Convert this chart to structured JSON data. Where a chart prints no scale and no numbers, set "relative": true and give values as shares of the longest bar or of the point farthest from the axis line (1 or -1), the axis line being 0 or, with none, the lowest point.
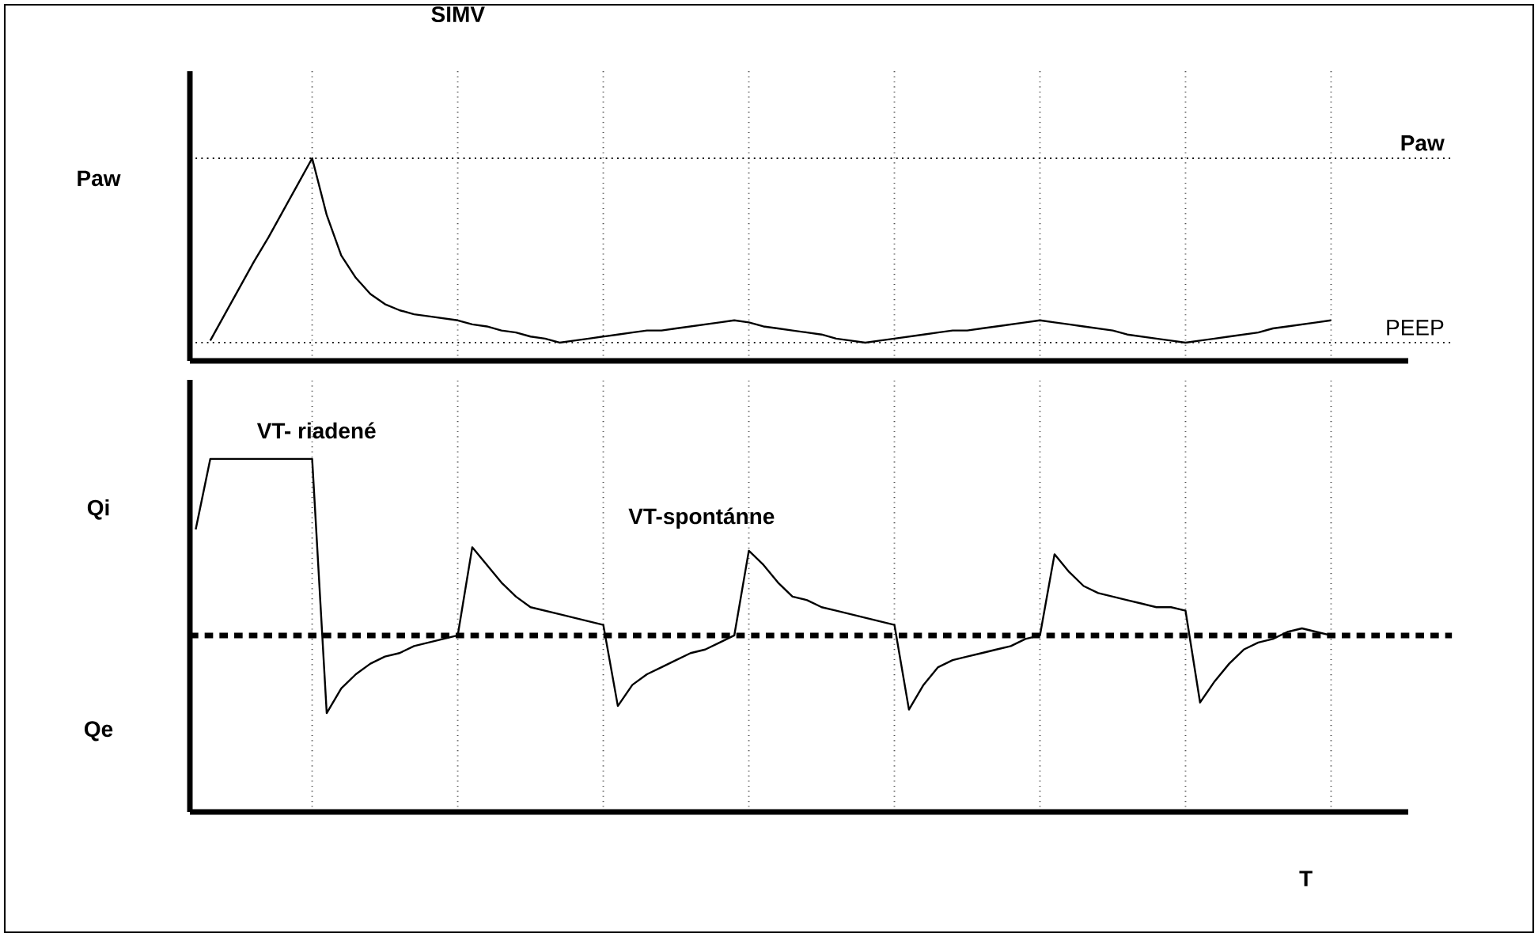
{
  "chart_data": [
    {
      "type": "line",
      "title": "SIMV",
      "ylabel": "Paw",
      "relative": true,
      "color": "#000000",
      "line_style": "solid",
      "marker": "none",
      "grid": "x",
      "categories": [
        null,
        null,
        null,
        null,
        null,
        null,
        null,
        null,
        null,
        null,
        null,
        null,
        null,
        null,
        null,
        null,
        null,
        null,
        null,
        null,
        null,
        null,
        null,
        null,
        null,
        null,
        null,
        null,
        null,
        null,
        null,
        null,
        null,
        null,
        null,
        null,
        null,
        null,
        null,
        null,
        null,
        null,
        null,
        null,
        null,
        null,
        null,
        null,
        null,
        null,
        null,
        null,
        null,
        null,
        null,
        null,
        null,
        null,
        null,
        null,
        null,
        null,
        null,
        null,
        null,
        null,
        null,
        null,
        null,
        null,
        null,
        null,
        null,
        null,
        null,
        null,
        null,
        null,
        null,
        null
      ],
      "values": [
        null,
        0.1,
        0.23,
        0.36,
        0.49,
        0.61,
        0.74,
        0.87,
        1,
        0.72,
        0.52,
        0.41,
        0.33,
        0.28,
        0.25,
        0.23,
        0.22,
        0.21,
        0.2,
        0.18,
        0.17,
        0.15,
        0.14,
        0.12,
        0.11,
        0.09,
        0.1,
        0.11,
        0.12,
        0.13,
        0.14,
        0.15,
        0.15,
        0.16,
        0.17,
        0.18,
        0.19,
        0.2,
        0.19,
        0.17,
        0.16,
        0.15,
        0.14,
        0.13,
        0.11,
        0.1,
        0.09,
        0.1,
        0.11,
        0.12,
        0.13,
        0.14,
        0.15,
        0.15,
        0.16,
        0.17,
        0.18,
        0.19,
        0.2,
        0.19,
        0.18,
        0.17,
        0.16,
        0.15,
        0.13,
        0.12,
        0.11,
        0.1,
        0.09,
        0.1,
        0.11,
        0.12,
        0.13,
        0.14,
        0.16,
        0.17,
        0.18,
        0.19,
        0.2,
        null
      ],
      "ref_lines": [
        {
          "axis": "y",
          "value": 1,
          "label": "Paw",
          "line_style": "dotted",
          "color": "#000000"
        },
        {
          "axis": "y",
          "value": 0.09,
          "label": "PEEP",
          "line_style": "dotted",
          "color": "#000000"
        }
      ]
    },
    {
      "type": "line",
      "xlabel": "T",
      "relative": true,
      "color": "#000000",
      "line_style": "solid",
      "marker": "none",
      "grid": "x",
      "categories": [
        null,
        null,
        null,
        null,
        null,
        null,
        null,
        null,
        null,
        null,
        null,
        null,
        null,
        null,
        null,
        null,
        null,
        null,
        null,
        null,
        null,
        null,
        null,
        null,
        null,
        null,
        null,
        null,
        null,
        null,
        null,
        null,
        null,
        null,
        null,
        null,
        null,
        null,
        null,
        null,
        null,
        null,
        null,
        null,
        null,
        null,
        null,
        null,
        null,
        null,
        null,
        null,
        null,
        null,
        null,
        null,
        null,
        null,
        null,
        null,
        null,
        null,
        null,
        null,
        null,
        null,
        null,
        null,
        null,
        null,
        null,
        null,
        null,
        null,
        null,
        null,
        null,
        null,
        null,
        null
      ],
      "values": [
        0.8,
        1,
        1,
        1,
        1,
        1,
        1,
        1,
        1,
        0.28,
        0.35,
        0.39,
        0.42,
        0.44,
        0.45,
        0.47,
        0.48,
        0.49,
        0.5,
        0.75,
        0.7,
        0.65,
        0.61,
        0.58,
        0.57,
        0.56,
        0.55,
        0.54,
        0.53,
        0.3,
        0.36,
        0.39,
        0.41,
        0.43,
        0.45,
        0.46,
        0.48,
        0.5,
        0.74,
        0.7,
        0.65,
        0.61,
        0.6,
        0.58,
        0.57,
        0.56,
        0.55,
        0.54,
        0.53,
        0.29,
        0.36,
        0.41,
        0.43,
        0.44,
        0.45,
        0.46,
        0.47,
        0.49,
        0.5,
        0.73,
        0.68,
        0.64,
        0.62,
        0.61,
        0.6,
        0.59,
        0.58,
        0.58,
        0.57,
        0.31,
        0.37,
        0.42,
        0.46,
        0.48,
        0.49,
        0.51,
        0.52,
        0.51,
        0.5,
        null
      ],
      "ref_lines": [
        {
          "axis": "y",
          "value": 0.5,
          "line_style": "dashed",
          "color": "#000000"
        }
      ],
      "annotations": [
        "Qi",
        "Qe",
        "VT- riadené",
        "VT-spontánne"
      ]
    }
  ]
}
